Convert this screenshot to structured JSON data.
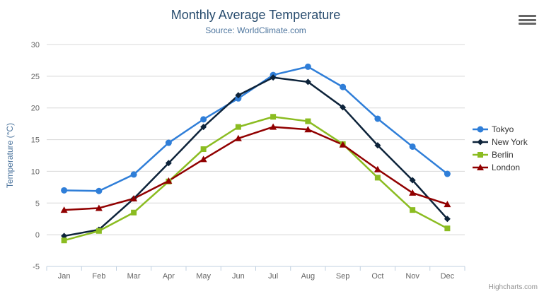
{
  "chart_data": {
    "type": "line",
    "title": "Monthly Average Temperature",
    "subtitle": "Source: WorldClimate.com",
    "categories": [
      "Jan",
      "Feb",
      "Mar",
      "Apr",
      "May",
      "Jun",
      "Jul",
      "Aug",
      "Sep",
      "Oct",
      "Nov",
      "Dec"
    ],
    "xlabel": "",
    "ylabel": "Temperature (°C)",
    "ylim": [
      -5,
      30
    ],
    "yticks": [
      -5,
      0,
      5,
      10,
      15,
      20,
      25,
      30
    ],
    "grid": true,
    "legend_position": "right",
    "series": [
      {
        "name": "Tokyo",
        "color": "#2f7ed8",
        "marker": "circle",
        "values": [
          7.0,
          6.9,
          9.5,
          14.5,
          18.2,
          21.5,
          25.2,
          26.5,
          23.3,
          18.3,
          13.9,
          9.6
        ]
      },
      {
        "name": "New York",
        "color": "#0d233a",
        "marker": "diamond",
        "values": [
          -0.2,
          0.8,
          5.7,
          11.3,
          17.0,
          22.0,
          24.8,
          24.1,
          20.1,
          14.1,
          8.6,
          2.5
        ]
      },
      {
        "name": "Berlin",
        "color": "#8bbc21",
        "marker": "square",
        "values": [
          -0.9,
          0.6,
          3.5,
          8.4,
          13.5,
          17.0,
          18.6,
          17.9,
          14.3,
          9.0,
          3.9,
          1.0
        ]
      },
      {
        "name": "London",
        "color": "#910000",
        "marker": "triangle",
        "values": [
          3.9,
          4.2,
          5.7,
          8.5,
          11.9,
          15.2,
          17.0,
          16.6,
          14.2,
          10.3,
          6.6,
          4.8
        ]
      }
    ],
    "colors": {
      "title": "#274b6d",
      "subtitle": "#4d759e",
      "axis_label": "#666666",
      "axis_title": "#4d759e",
      "gridline": "#d8d8d8",
      "axis_line": "#c0d0e0",
      "legend_text": "#333333",
      "credits_text": "#909090"
    }
  },
  "credits": {
    "label": "Highcharts.com"
  },
  "export_menu": {
    "icon": "hamburger-icon"
  }
}
